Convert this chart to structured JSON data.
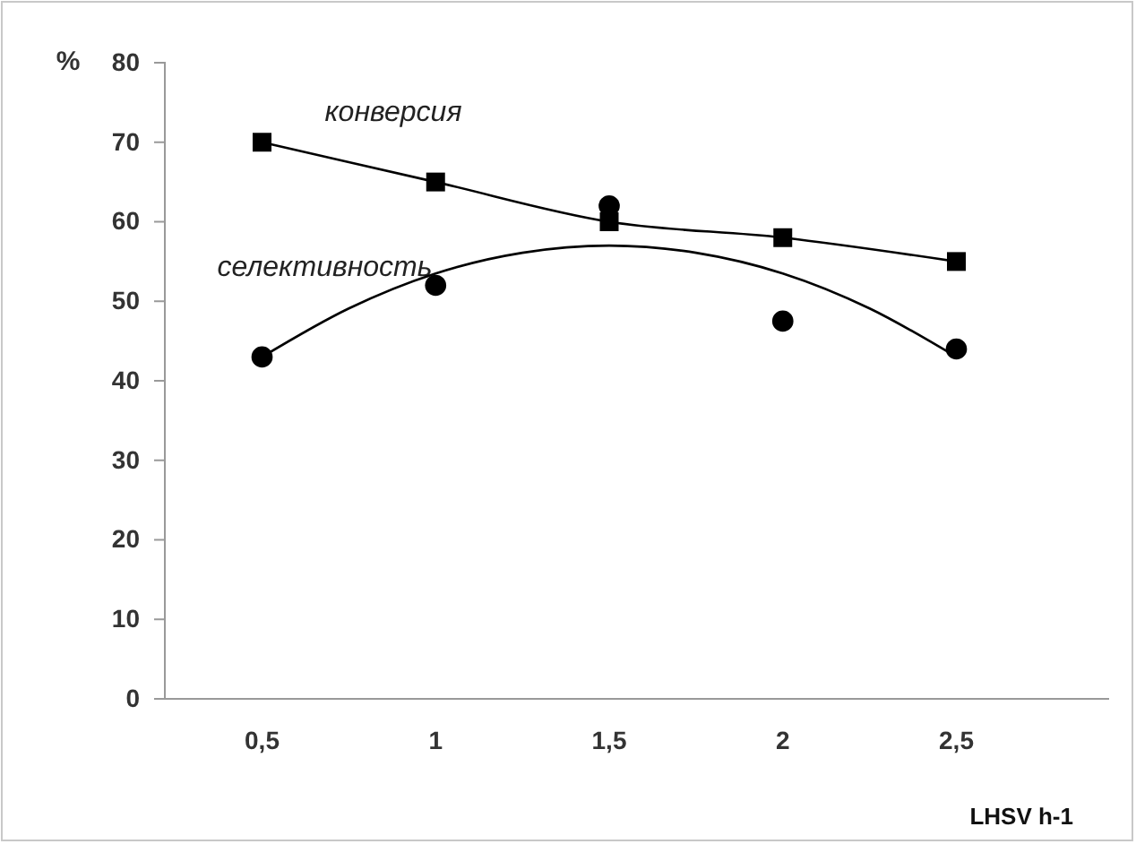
{
  "chart_data": {
    "type": "line",
    "xlabel": "LHSV h-1",
    "ylabel": "%",
    "xlim": [
      0.22,
      2.94
    ],
    "xticks": [
      {
        "value": 0.5,
        "label": "0,5"
      },
      1,
      {
        "value": 1.5,
        "label": "1,5"
      },
      2,
      {
        "value": 2.5,
        "label": "2,5"
      }
    ],
    "ylim": [
      0,
      80
    ],
    "yticks": [
      0,
      10,
      20,
      30,
      40,
      50,
      60,
      70,
      80
    ],
    "grid": false,
    "series": [
      {
        "name": "конверсия",
        "marker": "square",
        "color": "#000000",
        "x": [
          0.5,
          1,
          1.5,
          2,
          2.5
        ],
        "values": [
          70,
          65,
          60,
          58,
          55
        ]
      },
      {
        "name": "селективность",
        "type": "scatter",
        "marker": "circle",
        "color": "#000000",
        "x": [
          0.5,
          1,
          1.5,
          2,
          2.5
        ],
        "values": [
          43,
          52,
          62,
          47.5,
          44
        ]
      },
      {
        "type": "line",
        "marker": "none",
        "color": "#000000",
        "x": [
          0.5,
          0.75,
          1,
          1.25,
          1.5,
          1.75,
          2,
          2.25,
          2.5
        ],
        "values": [
          43,
          49.1,
          53.5,
          56.1,
          57,
          56.1,
          53.5,
          49.1,
          43
        ]
      }
    ]
  }
}
